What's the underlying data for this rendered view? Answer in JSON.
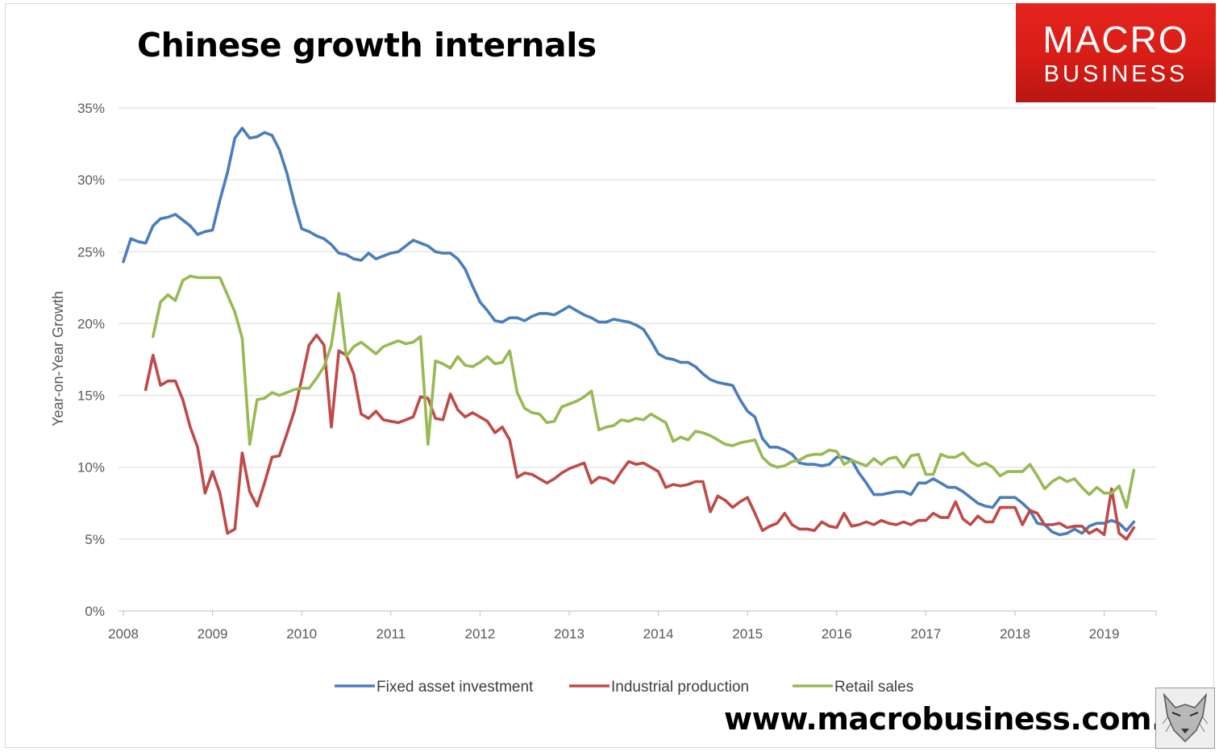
{
  "header": {
    "title": "Chinese growth internals",
    "logo_line1": "MACRO",
    "logo_line2": "BUSINESS",
    "url": "www.macrobusiness.com.au"
  },
  "chart_data": {
    "type": "line",
    "title": "Chinese growth internals",
    "xlabel": "",
    "ylabel": "Year-on-Year Growth",
    "ylim": [
      0,
      35
    ],
    "xlim": [
      2008.0,
      2019.7
    ],
    "yticks": [
      0,
      5,
      10,
      15,
      20,
      25,
      30,
      35
    ],
    "ytick_labels": [
      "0%",
      "5%",
      "10%",
      "15%",
      "20%",
      "25%",
      "30%",
      "35%"
    ],
    "xticks": [
      2008,
      2009,
      2010,
      2011,
      2012,
      2013,
      2014,
      2015,
      2016,
      2017,
      2018,
      2019
    ],
    "xtick_labels": [
      "2008",
      "2009",
      "2010",
      "2011",
      "2012",
      "2013",
      "2014",
      "2015",
      "2016",
      "2017",
      "2018",
      "2019"
    ],
    "grid": true,
    "legend_position": "bottom",
    "series": [
      {
        "name": "Fixed asset investment",
        "color": "#4a7ebb",
        "x": [
          2008.0,
          2008.083,
          2008.167,
          2008.25,
          2008.333,
          2008.417,
          2008.5,
          2008.583,
          2008.667,
          2008.75,
          2008.833,
          2008.917,
          2009.0,
          2009.083,
          2009.167,
          2009.25,
          2009.333,
          2009.417,
          2009.5,
          2009.583,
          2009.667,
          2009.75,
          2009.833,
          2009.917,
          2010.0,
          2010.083,
          2010.167,
          2010.25,
          2010.333,
          2010.417,
          2010.5,
          2010.583,
          2010.667,
          2010.75,
          2010.833,
          2010.917,
          2011.0,
          2011.083,
          2011.167,
          2011.25,
          2011.333,
          2011.417,
          2011.5,
          2011.583,
          2011.667,
          2011.75,
          2011.833,
          2011.917,
          2012.0,
          2012.083,
          2012.167,
          2012.25,
          2012.333,
          2012.417,
          2012.5,
          2012.583,
          2012.667,
          2012.75,
          2012.833,
          2012.917,
          2013.0,
          2013.083,
          2013.167,
          2013.25,
          2013.333,
          2013.417,
          2013.5,
          2013.583,
          2013.667,
          2013.75,
          2013.833,
          2013.917,
          2014.0,
          2014.083,
          2014.167,
          2014.25,
          2014.333,
          2014.417,
          2014.5,
          2014.583,
          2014.667,
          2014.75,
          2014.833,
          2014.917,
          2015.0,
          2015.083,
          2015.167,
          2015.25,
          2015.333,
          2015.417,
          2015.5,
          2015.583,
          2015.667,
          2015.75,
          2015.833,
          2015.917,
          2016.0,
          2016.083,
          2016.167,
          2016.25,
          2016.333,
          2016.417,
          2016.5,
          2016.583,
          2016.667,
          2016.75,
          2016.833,
          2016.917,
          2017.0,
          2017.083,
          2017.167,
          2017.25,
          2017.333,
          2017.417,
          2017.5,
          2017.583,
          2017.667,
          2017.75,
          2017.833,
          2017.917,
          2018.0,
          2018.083,
          2018.167,
          2018.25,
          2018.333,
          2018.417,
          2018.5,
          2018.583,
          2018.667,
          2018.75,
          2018.833,
          2018.917,
          2019.0,
          2019.083,
          2019.167,
          2019.25,
          2019.333
        ],
        "values": [
          24.3,
          25.9,
          25.7,
          25.6,
          26.8,
          27.3,
          27.4,
          27.6,
          27.2,
          26.8,
          26.2,
          26.4,
          26.5,
          28.6,
          30.5,
          32.9,
          33.6,
          32.9,
          33.0,
          33.3,
          33.1,
          32.1,
          30.5,
          28.4,
          26.6,
          26.4,
          26.1,
          25.9,
          25.5,
          24.9,
          24.8,
          24.5,
          24.4,
          24.9,
          24.5,
          24.7,
          24.9,
          25.0,
          25.4,
          25.8,
          25.6,
          25.4,
          25.0,
          24.9,
          24.9,
          24.5,
          23.8,
          22.6,
          21.5,
          20.9,
          20.2,
          20.1,
          20.4,
          20.4,
          20.2,
          20.5,
          20.7,
          20.7,
          20.6,
          20.9,
          21.2,
          20.9,
          20.6,
          20.4,
          20.1,
          20.1,
          20.3,
          20.2,
          20.1,
          19.9,
          19.6,
          18.8,
          17.9,
          17.6,
          17.5,
          17.3,
          17.3,
          17.0,
          16.5,
          16.1,
          15.9,
          15.8,
          15.7,
          14.7,
          13.9,
          13.5,
          12.0,
          11.4,
          11.4,
          11.2,
          10.9,
          10.3,
          10.2,
          10.2,
          10.1,
          10.2,
          10.7,
          10.7,
          10.5,
          9.6,
          8.9,
          8.1,
          8.1,
          8.2,
          8.3,
          8.3,
          8.1,
          8.9,
          8.9,
          9.2,
          8.9,
          8.6,
          8.6,
          8.3,
          7.9,
          7.5,
          7.3,
          7.2,
          7.9,
          7.9,
          7.9,
          7.5,
          7.0,
          6.1,
          6.0,
          5.5,
          5.3,
          5.4,
          5.7,
          5.4,
          5.9,
          6.1,
          6.1,
          6.3,
          6.1,
          5.6,
          6.2
        ]
      },
      {
        "name": "Industrial production",
        "color": "#be4b48",
        "x": [
          2008.25,
          2008.333,
          2008.417,
          2008.5,
          2008.583,
          2008.667,
          2008.75,
          2008.833,
          2008.917,
          2009.0,
          2009.083,
          2009.167,
          2009.25,
          2009.333,
          2009.417,
          2009.5,
          2009.583,
          2009.667,
          2009.75,
          2009.833,
          2009.917,
          2010.0,
          2010.083,
          2010.167,
          2010.25,
          2010.333,
          2010.417,
          2010.5,
          2010.583,
          2010.667,
          2010.75,
          2010.833,
          2010.917,
          2011.0,
          2011.083,
          2011.167,
          2011.25,
          2011.333,
          2011.417,
          2011.5,
          2011.583,
          2011.667,
          2011.75,
          2011.833,
          2011.917,
          2012.0,
          2012.083,
          2012.167,
          2012.25,
          2012.333,
          2012.417,
          2012.5,
          2012.583,
          2012.667,
          2012.75,
          2012.833,
          2012.917,
          2013.0,
          2013.083,
          2013.167,
          2013.25,
          2013.333,
          2013.417,
          2013.5,
          2013.583,
          2013.667,
          2013.75,
          2013.833,
          2013.917,
          2014.0,
          2014.083,
          2014.167,
          2014.25,
          2014.333,
          2014.417,
          2014.5,
          2014.583,
          2014.667,
          2014.75,
          2014.833,
          2014.917,
          2015.0,
          2015.083,
          2015.167,
          2015.25,
          2015.333,
          2015.417,
          2015.5,
          2015.583,
          2015.667,
          2015.75,
          2015.833,
          2015.917,
          2016.0,
          2016.083,
          2016.167,
          2016.25,
          2016.333,
          2016.417,
          2016.5,
          2016.583,
          2016.667,
          2016.75,
          2016.833,
          2016.917,
          2017.0,
          2017.083,
          2017.167,
          2017.25,
          2017.333,
          2017.417,
          2017.5,
          2017.583,
          2017.667,
          2017.75,
          2017.833,
          2017.917,
          2018.0,
          2018.083,
          2018.167,
          2018.25,
          2018.333,
          2018.417,
          2018.5,
          2018.583,
          2018.667,
          2018.75,
          2018.833,
          2018.917,
          2019.0,
          2019.083,
          2019.167,
          2019.25,
          2019.333
        ],
        "values": [
          15.4,
          17.8,
          15.7,
          16.0,
          16.0,
          14.7,
          12.8,
          11.4,
          8.2,
          9.7,
          8.2,
          5.4,
          5.7,
          11.0,
          8.3,
          7.3,
          8.9,
          10.7,
          10.8,
          12.3,
          13.9,
          16.1,
          18.5,
          19.2,
          18.5,
          12.8,
          18.1,
          17.8,
          16.5,
          13.7,
          13.4,
          13.9,
          13.3,
          13.2,
          13.1,
          13.3,
          13.5,
          14.9,
          14.8,
          13.4,
          13.3,
          15.1,
          14.0,
          13.5,
          13.8,
          13.5,
          13.2,
          12.4,
          12.8,
          11.9,
          9.3,
          9.6,
          9.5,
          9.2,
          8.9,
          9.2,
          9.6,
          9.9,
          10.1,
          10.3,
          8.9,
          9.3,
          9.2,
          8.9,
          9.7,
          10.4,
          10.2,
          10.3,
          10.0,
          9.7,
          8.6,
          8.8,
          8.7,
          8.8,
          9.0,
          9.0,
          6.9,
          8.0,
          7.7,
          7.2,
          7.6,
          7.9,
          6.8,
          5.6,
          5.9,
          6.1,
          6.8,
          6.0,
          5.7,
          5.7,
          5.6,
          6.2,
          5.9,
          5.8,
          6.8,
          5.9,
          6.0,
          6.2,
          6.0,
          6.3,
          6.1,
          6.0,
          6.2,
          6.0,
          6.3,
          6.3,
          6.8,
          6.5,
          6.5,
          7.6,
          6.4,
          6.0,
          6.6,
          6.2,
          6.2,
          7.2,
          7.2,
          7.2,
          6.0,
          7.0,
          6.8,
          6.0,
          6.0,
          6.1,
          5.8,
          5.9,
          5.9,
          5.4,
          5.7,
          5.3,
          8.5,
          5.4,
          5.0,
          5.8
        ]
      },
      {
        "name": "Retail sales",
        "color": "#98b954",
        "x": [
          2008.333,
          2008.417,
          2008.5,
          2008.583,
          2008.667,
          2008.75,
          2008.833,
          2008.917,
          2009.0,
          2009.083,
          2009.167,
          2009.25,
          2009.333,
          2009.417,
          2009.5,
          2009.583,
          2009.667,
          2009.75,
          2009.833,
          2009.917,
          2010.0,
          2010.083,
          2010.167,
          2010.25,
          2010.333,
          2010.417,
          2010.5,
          2010.583,
          2010.667,
          2010.75,
          2010.833,
          2010.917,
          2011.0,
          2011.083,
          2011.167,
          2011.25,
          2011.333,
          2011.417,
          2011.5,
          2011.583,
          2011.667,
          2011.75,
          2011.833,
          2011.917,
          2012.0,
          2012.083,
          2012.167,
          2012.25,
          2012.333,
          2012.417,
          2012.5,
          2012.583,
          2012.667,
          2012.75,
          2012.833,
          2012.917,
          2013.0,
          2013.083,
          2013.167,
          2013.25,
          2013.333,
          2013.417,
          2013.5,
          2013.583,
          2013.667,
          2013.75,
          2013.833,
          2013.917,
          2014.0,
          2014.083,
          2014.167,
          2014.25,
          2014.333,
          2014.417,
          2014.5,
          2014.583,
          2014.667,
          2014.75,
          2014.833,
          2014.917,
          2015.0,
          2015.083,
          2015.167,
          2015.25,
          2015.333,
          2015.417,
          2015.5,
          2015.583,
          2015.667,
          2015.75,
          2015.833,
          2015.917,
          2016.0,
          2016.083,
          2016.167,
          2016.25,
          2016.333,
          2016.417,
          2016.5,
          2016.583,
          2016.667,
          2016.75,
          2016.833,
          2016.917,
          2017.0,
          2017.083,
          2017.167,
          2017.25,
          2017.333,
          2017.417,
          2017.5,
          2017.583,
          2017.667,
          2017.75,
          2017.833,
          2017.917,
          2018.0,
          2018.083,
          2018.167,
          2018.25,
          2018.333,
          2018.417,
          2018.5,
          2018.583,
          2018.667,
          2018.75,
          2018.833,
          2018.917,
          2019.0,
          2019.083,
          2019.167,
          2019.25,
          2019.333
        ],
        "values": [
          19.1,
          21.5,
          22.0,
          21.6,
          23.0,
          23.3,
          23.2,
          23.2,
          23.2,
          23.2,
          22.0,
          20.8,
          19.0,
          11.6,
          14.7,
          14.8,
          15.2,
          15.0,
          15.2,
          15.4,
          15.5,
          15.5,
          16.2,
          17.0,
          18.5,
          22.1,
          17.7,
          18.4,
          18.7,
          18.3,
          17.9,
          18.4,
          18.6,
          18.8,
          18.6,
          18.7,
          19.1,
          11.6,
          17.4,
          17.2,
          16.9,
          17.7,
          17.1,
          17.0,
          17.3,
          17.7,
          17.2,
          17.3,
          18.1,
          15.2,
          14.1,
          13.8,
          13.7,
          13.1,
          13.2,
          14.2,
          14.4,
          14.6,
          14.9,
          15.3,
          12.6,
          12.8,
          12.9,
          13.3,
          13.2,
          13.4,
          13.3,
          13.7,
          13.4,
          13.1,
          11.8,
          12.1,
          11.9,
          12.5,
          12.4,
          12.2,
          11.9,
          11.6,
          11.5,
          11.7,
          11.8,
          11.9,
          10.7,
          10.2,
          10.0,
          10.1,
          10.4,
          10.5,
          10.8,
          10.9,
          10.9,
          11.2,
          11.1,
          10.2,
          10.5,
          10.3,
          10.1,
          10.6,
          10.2,
          10.6,
          10.7,
          10.0,
          10.8,
          10.9,
          9.5,
          9.5,
          10.9,
          10.7,
          10.7,
          11.0,
          10.4,
          10.1,
          10.3,
          10.0,
          9.4,
          9.7,
          9.7,
          9.7,
          10.2,
          9.4,
          8.5,
          9.0,
          9.3,
          9.0,
          9.2,
          8.6,
          8.1,
          8.6,
          8.2,
          8.2,
          8.7,
          7.2,
          9.8
        ]
      }
    ]
  }
}
